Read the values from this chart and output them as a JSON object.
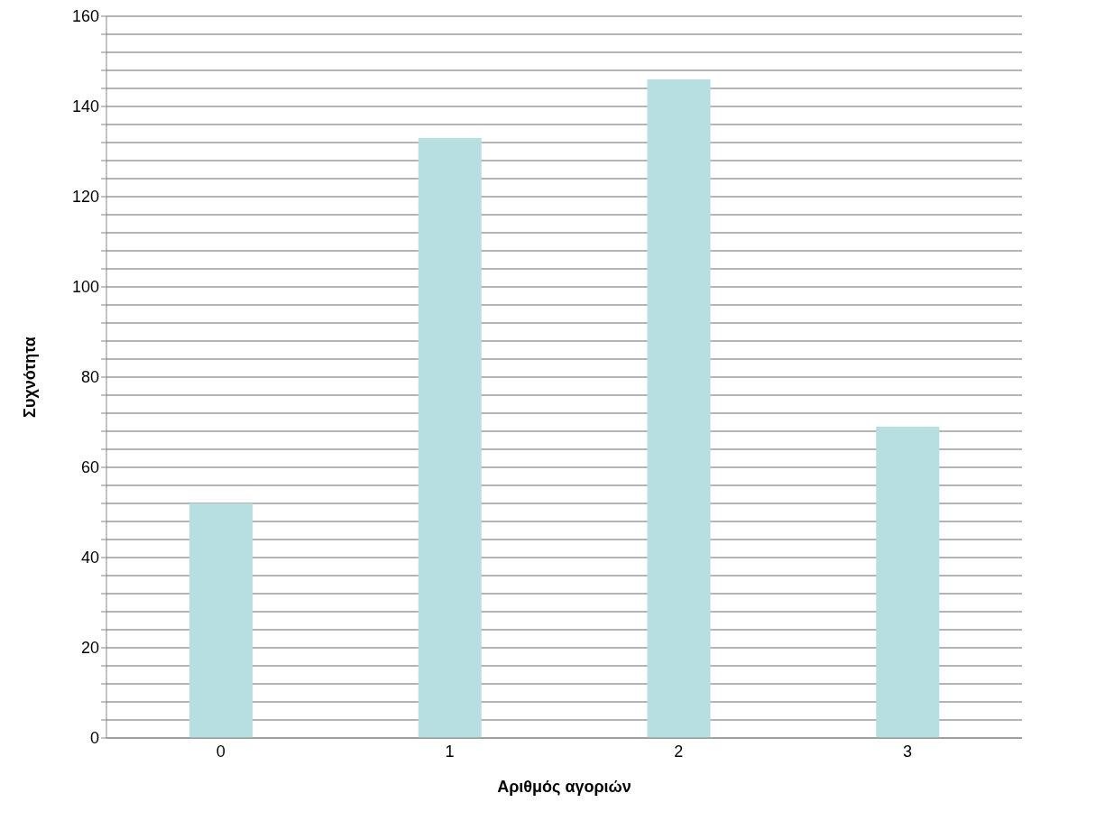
{
  "chart_data": {
    "type": "bar",
    "xlabel": "Αριθμός  αγοριών",
    "ylabel": "Συχνότητα",
    "categories": [
      "0",
      "1",
      "2",
      "3"
    ],
    "values": [
      52,
      133,
      146,
      69
    ],
    "color": "#b7dee1",
    "ylim": [
      0,
      160
    ],
    "yticks": [
      0,
      {
        "value": 4,
        "label": null
      },
      {
        "value": 8,
        "label": null
      },
      {
        "value": 12,
        "label": null
      },
      {
        "value": 16,
        "label": null
      },
      20,
      {
        "value": 24,
        "label": null
      },
      {
        "value": 28,
        "label": null
      },
      {
        "value": 32,
        "label": null
      },
      {
        "value": 36,
        "label": null
      },
      40,
      {
        "value": 44,
        "label": null
      },
      {
        "value": 48,
        "label": null
      },
      {
        "value": 52,
        "label": null
      },
      {
        "value": 56,
        "label": null
      },
      60,
      {
        "value": 64,
        "label": null
      },
      {
        "value": 68,
        "label": null
      },
      {
        "value": 72,
        "label": null
      },
      {
        "value": 76,
        "label": null
      },
      80,
      {
        "value": 84,
        "label": null
      },
      {
        "value": 88,
        "label": null
      },
      {
        "value": 92,
        "label": null
      },
      {
        "value": 96,
        "label": null
      },
      100,
      {
        "value": 104,
        "label": null
      },
      {
        "value": 108,
        "label": null
      },
      {
        "value": 112,
        "label": null
      },
      {
        "value": 116,
        "label": null
      },
      120,
      {
        "value": 124,
        "label": null
      },
      {
        "value": 128,
        "label": null
      },
      {
        "value": 132,
        "label": null
      },
      {
        "value": 136,
        "label": null
      },
      140,
      {
        "value": 144,
        "label": null
      },
      {
        "value": 148,
        "label": null
      },
      {
        "value": 152,
        "label": null
      },
      {
        "value": 156,
        "label": null
      },
      160
    ],
    "grid": "y",
    "legend": false
  }
}
